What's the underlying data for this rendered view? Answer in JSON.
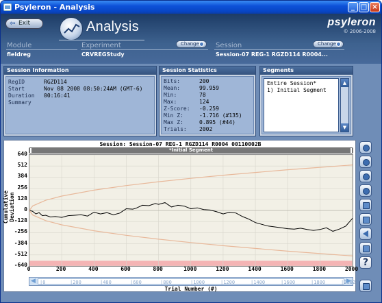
{
  "window": {
    "title": "Psyleron - Analysis"
  },
  "header": {
    "exit_label": "Exit",
    "page_title": "Analysis",
    "brand_name": "psyleron",
    "brand_copyright": "© 2006-2008",
    "module_label": "Module",
    "module_value": "fieldreg",
    "experiment_label": "Experiment",
    "experiment_value": "CRVREGStudy",
    "session_label": "Session",
    "session_value": "Session-07 REG-1 RGZD114 R0004...",
    "change_label": "Change"
  },
  "session_info": {
    "title": "Session Information",
    "fields": [
      {
        "key": "RegID",
        "value": "RGZD114"
      },
      {
        "key": "Start",
        "value": "Nov 08 2008 08:50:24AM (GMT-6)"
      },
      {
        "key": "Duration",
        "value": "00:16:41"
      },
      {
        "key": "Summary",
        "value": ""
      }
    ]
  },
  "session_stats": {
    "title": "Session Statistics",
    "fields": [
      {
        "key": "Bits:",
        "value": "200"
      },
      {
        "key": "Mean:",
        "value": "99.959"
      },
      {
        "key": "Min:",
        "value": "78"
      },
      {
        "key": "Max:",
        "value": "124"
      },
      {
        "key": "Z-Score:",
        "value": "-0.259"
      },
      {
        "key": "Min Z:",
        "value": "-1.716 (#135)"
      },
      {
        "key": "Max Z:",
        "value": "0.895 (#44)"
      },
      {
        "key": "Trials:",
        "value": "2002"
      }
    ]
  },
  "segments": {
    "title": "Segments",
    "items": [
      "Entire Session*",
      "1) Initial Segment"
    ]
  },
  "chart": {
    "title": "Session: Session-07 REG-1 RGZD114 R0004 00110002B",
    "segment_bar_label": "*Initial Segment",
    "scroll_ticks": [
      "0",
      "200",
      "400",
      "600",
      "800",
      "1000",
      "1200",
      "1400",
      "1600",
      "1800",
      "2002"
    ]
  },
  "colors": {
    "trace": "#000000",
    "envelope": "#e8b89a",
    "plot_bg": "#f2f0e6",
    "band": "#f4b4b4",
    "markers": "#4a5cd8"
  },
  "chart_data": {
    "type": "line",
    "xlabel": "Trial Number (#)",
    "ylabel": "Cumulative Deviation",
    "xlim": [
      0,
      2002
    ],
    "ylim": [
      -640,
      640
    ],
    "x_ticks": [
      0,
      200,
      400,
      600,
      800,
      1000,
      1200,
      1400,
      1600,
      1800,
      2000
    ],
    "y_ticks": [
      640,
      512,
      384,
      256,
      128,
      0,
      -128,
      -256,
      -384,
      -512,
      -640
    ],
    "grid": true,
    "series": [
      {
        "x": [
          0,
          20,
          40,
          60,
          80,
          100,
          130,
          160,
          200,
          240,
          280,
          320,
          360,
          400,
          440,
          480,
          520,
          560,
          600,
          640,
          660,
          700,
          740,
          780,
          800,
          840,
          880,
          920,
          960,
          1000,
          1040,
          1080,
          1120,
          1160,
          1200,
          1240,
          1280,
          1320,
          1360,
          1400,
          1440,
          1480,
          1520,
          1560,
          1600,
          1640,
          1680,
          1720,
          1760,
          1800,
          1840,
          1880,
          1920,
          1960,
          2002
        ],
        "y": [
          0,
          -10,
          -40,
          -25,
          -60,
          -55,
          -75,
          -70,
          -80,
          -60,
          -55,
          -50,
          -65,
          -20,
          -40,
          -25,
          -50,
          -30,
          20,
          15,
          25,
          60,
          55,
          80,
          70,
          90,
          40,
          60,
          50,
          20,
          30,
          10,
          5,
          -15,
          -40,
          -20,
          -30,
          -70,
          -100,
          -140,
          -160,
          -180,
          -190,
          -200,
          -210,
          -215,
          -205,
          -220,
          -230,
          -220,
          -200,
          -240,
          -215,
          -180,
          -90
        ]
      },
      {
        "name": "+envelope",
        "x": [
          0,
          20,
          100,
          200,
          400,
          600,
          800,
          1000,
          1200,
          1400,
          1600,
          1800,
          2002
        ],
        "y": [
          0,
          52,
          117,
          166,
          234,
          287,
          331,
          370,
          406,
          438,
          469,
          497,
          525
        ]
      },
      {
        "name": "-envelope",
        "x": [
          0,
          20,
          100,
          200,
          400,
          600,
          800,
          1000,
          1200,
          1400,
          1600,
          1800,
          2002
        ],
        "y": [
          0,
          -52,
          -117,
          -166,
          -234,
          -287,
          -331,
          -370,
          -406,
          -438,
          -469,
          -497,
          -525
        ]
      }
    ]
  }
}
